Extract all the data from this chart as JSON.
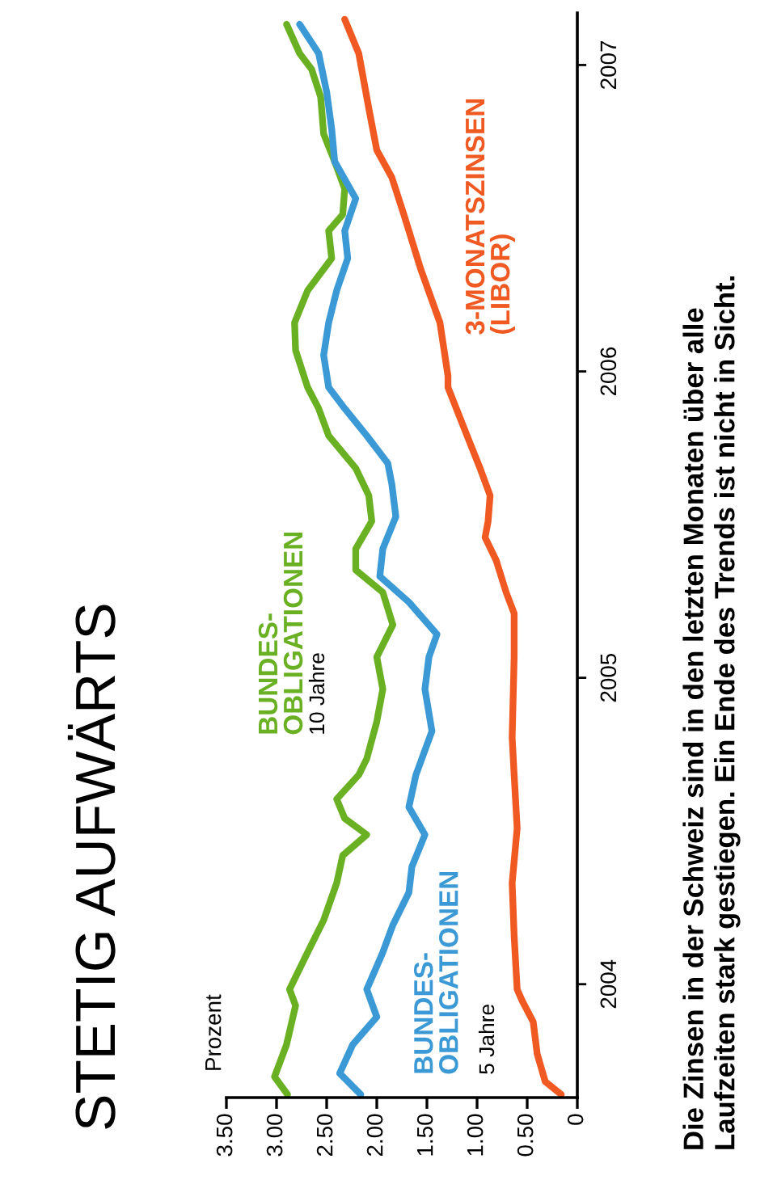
{
  "chart_data": {
    "type": "line",
    "title": "STETIG AUFWÄRTS",
    "annotations": [
      "10 Jahre",
      "5 Jahre",
      "Prozent",
      "Die Zinsen in der Schweiz sind in den letzten Monaten über alle\nLaufzeiten stark gestiegen. Ein Ende des Trends ist nicht in Sicht."
    ],
    "ylim": [
      2003.63,
      2007.17
    ],
    "yticks": [
      2004,
      2005,
      2006,
      2007
    ],
    "xlim": [
      3.5,
      0
    ],
    "xticks": [
      0,
      {
        "value": 0.5,
        "label": "0.50"
      },
      {
        "value": 1,
        "label": "1.00"
      },
      {
        "value": 1.5,
        "label": "1.50"
      },
      {
        "value": 2,
        "label": "2.00"
      },
      {
        "value": 2.5,
        "label": "2.50"
      },
      {
        "value": 3,
        "label": "3.00"
      },
      {
        "value": 3.5,
        "label": "3.50"
      }
    ],
    "marker": "none",
    "line_style": "solid",
    "series": [
      {
        "name": "BUNDES-\nOBLIGATIONEN",
        "color": "#6ab023",
        "values": [
          2003.64,
          2003.698,
          2003.803,
          2003.93,
          2003.983,
          2004.104,
          2004.209,
          2004.33,
          2004.42,
          2004.488,
          2004.541,
          2004.604,
          2004.683,
          2004.736,
          2004.857,
          2004.963,
          2005.068,
          2005.173,
          2005.279,
          2005.352,
          2005.421,
          2005.511,
          2005.595,
          2005.684,
          2005.79,
          2005.879,
          2005.948,
          2006.069,
          2006.159,
          2006.264,
          2006.369,
          2006.459,
          2006.512,
          2006.596,
          2006.685,
          2006.775,
          2006.896,
          2006.986,
          2007.038,
          2007.133
        ],
        "x": [
          2.89,
          3.02,
          2.9,
          2.81,
          2.87,
          2.69,
          2.53,
          2.4,
          2.34,
          2.1,
          2.32,
          2.4,
          2.18,
          2.1,
          2.0,
          1.94,
          2.0,
          1.84,
          1.94,
          2.21,
          2.21,
          2.05,
          2.08,
          2.21,
          2.48,
          2.58,
          2.69,
          2.81,
          2.82,
          2.69,
          2.45,
          2.48,
          2.34,
          2.32,
          2.42,
          2.53,
          2.56,
          2.65,
          2.77,
          2.9
        ]
      },
      {
        "name": "BUNDES-\nOBLIGATIONEN",
        "color": "#3b9ad6",
        "values": [
          2003.64,
          2003.709,
          2003.803,
          2003.893,
          2003.983,
          2004.104,
          2004.193,
          2004.299,
          2004.383,
          2004.488,
          2004.578,
          2004.683,
          2004.826,
          2004.963,
          2005.068,
          2005.142,
          2005.247,
          2005.331,
          2005.421,
          2005.526,
          2005.632,
          2005.7,
          2005.79,
          2005.879,
          2005.948,
          2006.053,
          2006.159,
          2006.264,
          2006.369,
          2006.459,
          2006.564,
          2006.685,
          2006.791,
          2006.912,
          2007.038,
          2007.133
        ],
        "x": [
          2.16,
          2.37,
          2.24,
          2.0,
          2.1,
          1.94,
          1.84,
          1.68,
          1.65,
          1.52,
          1.68,
          1.61,
          1.45,
          1.52,
          1.48,
          1.4,
          1.68,
          1.97,
          1.94,
          1.81,
          1.85,
          1.89,
          2.1,
          2.32,
          2.48,
          2.53,
          2.48,
          2.4,
          2.29,
          2.32,
          2.21,
          2.42,
          2.45,
          2.5,
          2.58,
          2.77
        ]
      },
      {
        "name": "3-MONATSZINSEN\n(LIBOR)",
        "color": "#f05a22",
        "values": [
          2003.64,
          2003.682,
          2003.772,
          2003.877,
          2003.946,
          2003.983,
          2004.157,
          2004.33,
          2004.509,
          2004.683,
          2004.805,
          2005.068,
          2005.21,
          2005.279,
          2005.384,
          2005.458,
          2005.511,
          2005.595,
          2005.684,
          2005.774,
          2005.948,
          2005.985,
          2006.159,
          2006.332,
          2006.512,
          2006.633,
          2006.722,
          2006.859,
          2007.038,
          2007.149
        ],
        "x": [
          0.16,
          0.32,
          0.4,
          0.44,
          0.55,
          0.6,
          0.63,
          0.65,
          0.6,
          0.63,
          0.65,
          0.63,
          0.63,
          0.71,
          0.81,
          0.92,
          0.89,
          0.87,
          0.97,
          1.08,
          1.29,
          1.29,
          1.37,
          1.56,
          1.73,
          1.85,
          2.0,
          2.08,
          2.18,
          2.32
        ]
      }
    ]
  }
}
